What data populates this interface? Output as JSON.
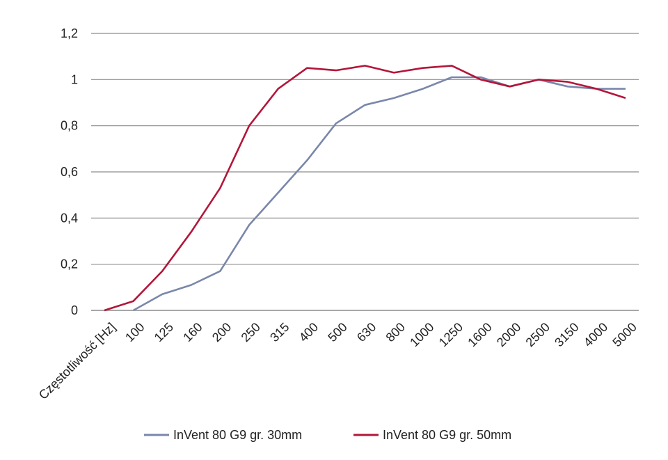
{
  "chart_data": {
    "type": "line",
    "categories": [
      "Częstotliwość [Hz]",
      "100",
      "125",
      "160",
      "200",
      "250",
      "315",
      "400",
      "500",
      "630",
      "800",
      "1000",
      "1250",
      "1600",
      "2000",
      "2500",
      "3150",
      "4000",
      "5000"
    ],
    "series": [
      {
        "name": "InVent 80 G9 gr. 30mm",
        "color": "#7a87ab",
        "values": [
          null,
          0,
          0.07,
          0.11,
          0.17,
          0.37,
          0.51,
          0.65,
          0.81,
          0.89,
          0.92,
          0.96,
          1.01,
          1.01,
          0.97,
          1.0,
          0.97,
          0.96,
          0.96
        ]
      },
      {
        "name": "InVent 80 G9 gr. 50mm",
        "color": "#b3163a",
        "values": [
          0,
          0.04,
          0.17,
          0.34,
          0.53,
          0.8,
          0.96,
          1.05,
          1.04,
          1.06,
          1.03,
          1.05,
          1.06,
          1.0,
          0.97,
          1.0,
          0.99,
          0.96,
          0.92
        ]
      }
    ],
    "y_ticks": [
      "0",
      "0,2",
      "0,4",
      "0,6",
      "0,8",
      "1",
      "1,2"
    ],
    "ylim": [
      0,
      1.2
    ],
    "grid": true,
    "legend_position": "bottom"
  }
}
